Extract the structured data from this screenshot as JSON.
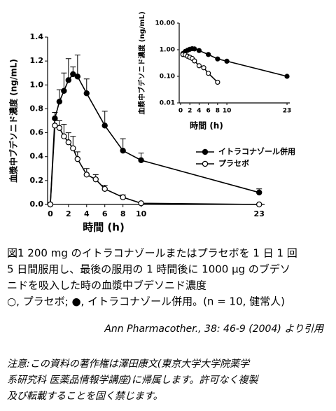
{
  "chart_data": [
    {
      "type": "line",
      "xlabel": "時間 (h)",
      "ylabel": "血漿中ブデソニド濃度 (ng/mL)",
      "xlim": [
        -0.3,
        23.6
      ],
      "xticks": [
        0,
        2,
        4,
        6,
        8,
        10,
        23
      ],
      "ylim": [
        0,
        1.4
      ],
      "yticks": [
        {
          "value": 0,
          "label": "0.0"
        },
        0.2,
        0.4,
        0.6,
        0.8,
        {
          "value": 1,
          "label": "1.0"
        },
        1.2,
        1.4
      ],
      "legend": "center-right",
      "series": [
        {
          "name": "イトラコナゾール併用",
          "color": "#000000",
          "marker": "filled",
          "x": [
            0,
            0.5,
            1,
            1.5,
            2,
            2.5,
            3,
            4,
            6,
            8,
            10,
            23
          ],
          "values": [
            0,
            0.72,
            0.86,
            0.95,
            1.04,
            1.09,
            1.07,
            0.93,
            0.66,
            0.45,
            0.37,
            0.1
          ],
          "errors": [
            null,
            0.05,
            0.1,
            0.15,
            0.18,
            0.06,
            0.18,
            0.12,
            0.12,
            0.1,
            0.06,
            0.03
          ]
        },
        {
          "name": "プラセボ",
          "color": "#000000",
          "marker": "open",
          "x": [
            0,
            0.5,
            1,
            1.5,
            2,
            2.5,
            3,
            4,
            5,
            6,
            8,
            10,
            23
          ],
          "values": [
            0,
            0.66,
            0.64,
            0.57,
            0.52,
            0.47,
            0.38,
            0.25,
            0.21,
            0.13,
            0.06,
            0.01,
            0
          ],
          "errors": [
            null,
            0.05,
            0.06,
            0.1,
            0.08,
            0.1,
            0.06,
            0.05,
            0.04,
            0.03,
            0.02,
            null,
            null
          ]
        }
      ]
    },
    {
      "type": "line",
      "xlabel": "時間 (h)",
      "ylabel": "血漿中ブデソニド濃度 (ng/mL)",
      "xlim": [
        -0.3,
        23.6
      ],
      "xticks": [
        0,
        2,
        4,
        6,
        8,
        10,
        23
      ],
      "ylim": [
        0.01,
        10
      ],
      "log_y": true,
      "yticks": [
        0.01,
        {
          "value": 0.1,
          "label": "0.10"
        },
        {
          "value": 1,
          "label": "1.00"
        },
        {
          "value": 10,
          "label": "10.00"
        }
      ],
      "series": [
        {
          "color": "#000000",
          "marker": "filled",
          "x": [
            0.5,
            1,
            1.5,
            2,
            2.5,
            3,
            4,
            6,
            8,
            10,
            23
          ],
          "values": [
            0.72,
            0.86,
            0.95,
            1.04,
            1.09,
            1.07,
            0.93,
            0.66,
            0.45,
            0.37,
            0.1
          ]
        },
        {
          "color": "#000000",
          "marker": "open",
          "x": [
            0.5,
            1,
            1.5,
            2,
            2.5,
            3,
            4,
            5,
            6,
            8
          ],
          "values": [
            0.66,
            0.64,
            0.57,
            0.52,
            0.47,
            0.38,
            0.25,
            0.21,
            0.13,
            0.06
          ]
        }
      ]
    }
  ],
  "caption": [
    "図1  200 mg のイトラコナゾールまたはプラセボを 1 日 1 回",
    "5 日間服用し、最後の服用の 1 時間後に 1000 μg のブデソ",
    "ニドを吸入した時の血漿中ブデソニド濃度",
    "○, プラセボ; ●, イトラコナゾール併用。(n = 10, 健常人)"
  ],
  "citation": "Ann Pharmacother., 38: 46-9 (2004) より引用",
  "notice": [
    "注意:この資料の著作権は澤田康文(東京大学大学院薬学",
    "系研究科  医薬品情報学講座)に帰属します。許可なく複製",
    "及び転載することを固く禁じます。"
  ]
}
